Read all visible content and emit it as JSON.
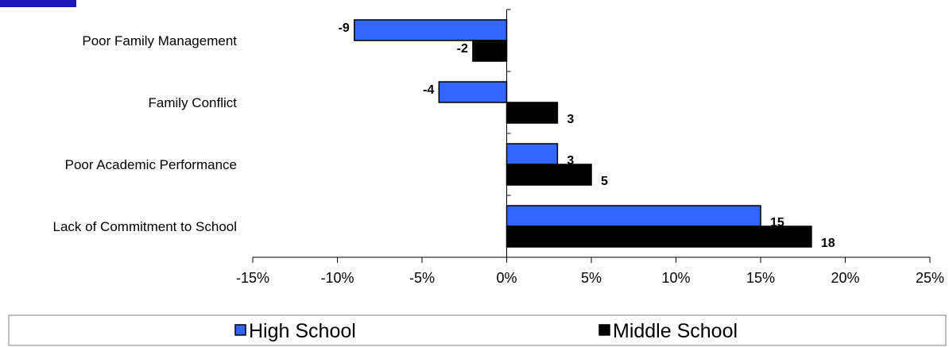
{
  "chart_data": {
    "type": "bar",
    "orientation": "horizontal",
    "categories": [
      "Poor Family Management",
      "Family Conflict",
      "Poor Academic Performance",
      "Lack of Commitment to School"
    ],
    "series": [
      {
        "name": "High School",
        "values": [
          -9,
          -4,
          3,
          15
        ],
        "color": "#3366FF"
      },
      {
        "name": "Middle School",
        "values": [
          -2,
          3,
          5,
          18
        ],
        "color": "#000000"
      }
    ],
    "data_labels": [
      [
        "-9",
        "-4",
        "3",
        "15"
      ],
      [
        "-2",
        "3",
        "5",
        "18"
      ]
    ],
    "xlim": [
      -15,
      25
    ],
    "xticks": [
      -15,
      -10,
      -5,
      0,
      5,
      10,
      15,
      20,
      25
    ],
    "xtick_labels": [
      "-15%",
      "-10%",
      "-5%",
      "0%",
      "5%",
      "10%",
      "15%",
      "20%",
      "25%"
    ],
    "title": "",
    "xlabel": "",
    "ylabel": "",
    "grid": false,
    "legend_position": "bottom"
  },
  "colors": {
    "background": "#FFFFFF",
    "high_school": "#3366FF",
    "middle_school": "#000000",
    "header_bar": "#1A1AB8"
  }
}
